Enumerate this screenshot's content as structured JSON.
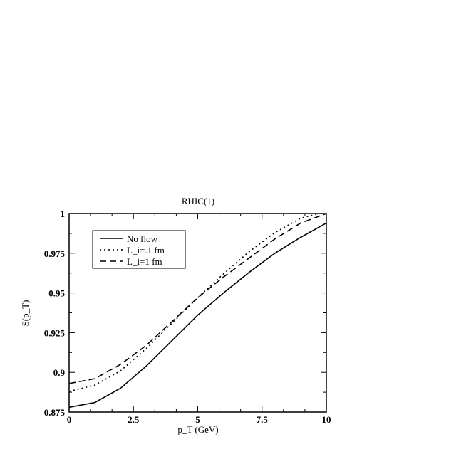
{
  "chart_data": {
    "type": "line",
    "title": "RHIC(1)",
    "xlabel": "p_T (GeV)",
    "ylabel": "S(p_T)",
    "xlim": [
      0,
      10
    ],
    "ylim": [
      0.875,
      1.0
    ],
    "x_ticks": [
      "0",
      "2.5",
      "5",
      "7.5",
      "10"
    ],
    "y_ticks": [
      "0.875",
      "0.9",
      "0.925",
      "0.95",
      "0.975",
      "1"
    ],
    "grid": false,
    "legend_position": "top-left",
    "series": [
      {
        "name": "No flow",
        "style": "solid",
        "x": [
          0,
          1,
          2,
          3,
          4,
          5,
          6,
          7,
          8,
          9,
          10
        ],
        "y": [
          0.878,
          0.881,
          0.89,
          0.904,
          0.92,
          0.936,
          0.95,
          0.963,
          0.975,
          0.985,
          0.994
        ]
      },
      {
        "name": "L_i=.1 fm",
        "style": "dotted",
        "x": [
          0,
          1,
          2,
          3,
          4,
          5,
          6,
          7,
          8,
          9,
          9.7
        ],
        "y": [
          0.888,
          0.892,
          0.901,
          0.915,
          0.931,
          0.947,
          0.962,
          0.976,
          0.988,
          0.997,
          1.0
        ]
      },
      {
        "name": "L_i=1 fm",
        "style": "dashed",
        "x": [
          0,
          1,
          2,
          3,
          4,
          5,
          6,
          7,
          8,
          9,
          10
        ],
        "y": [
          0.893,
          0.896,
          0.905,
          0.917,
          0.932,
          0.947,
          0.96,
          0.972,
          0.984,
          0.994,
          1.0
        ]
      }
    ]
  }
}
